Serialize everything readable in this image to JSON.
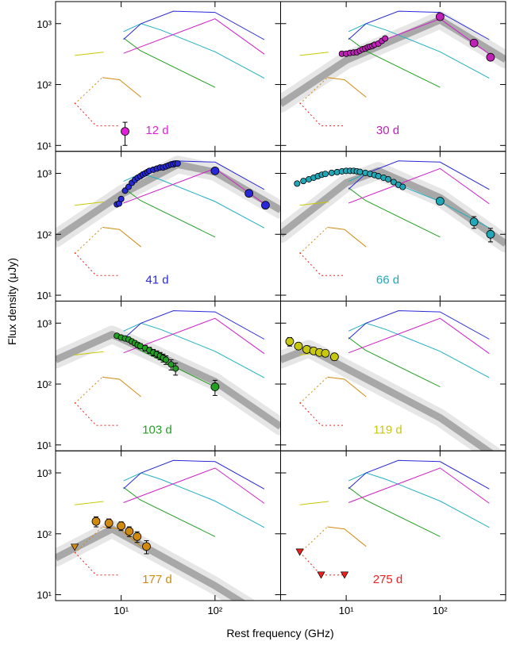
{
  "chart_data": {
    "type": "line",
    "log_x": true,
    "log_y": true,
    "xlabel": "Rest frequency (GHz)",
    "ylabel": "Flux density (μJy)",
    "xlim": [
      2,
      500
    ],
    "ylim": [
      8,
      2300
    ],
    "xticks": [
      {
        "value": 10,
        "label": "10¹"
      },
      {
        "value": 100,
        "label": "10²"
      }
    ],
    "yticks": [
      {
        "value": 10,
        "label": "10¹"
      },
      {
        "value": 100,
        "label": "10²"
      },
      {
        "value": 1000,
        "label": "10³"
      }
    ],
    "reference_series": [
      {
        "color": "#c8c800",
        "dashed": false,
        "x": [
          3.2,
          6.5
        ],
        "values": [
          300,
          340
        ]
      },
      {
        "color": "#d08a10",
        "dashed": true,
        "x": [
          3.2,
          6.3
        ],
        "values": [
          48,
          130
        ]
      },
      {
        "color": "#d08a10",
        "dashed": false,
        "x": [
          6.3,
          9.6,
          16.3
        ],
        "values": [
          130,
          120,
          62
        ]
      },
      {
        "color": "#ee2020",
        "dashed": true,
        "x": [
          3.2,
          5.4,
          9.6
        ],
        "values": [
          50,
          21,
          21
        ]
      },
      {
        "color": "#22a022",
        "dashed": false,
        "x": [
          10.6,
          16,
          100
        ],
        "values": [
          580,
          360,
          90
        ]
      },
      {
        "color": "#20b0c0",
        "dashed": false,
        "x": [
          10.6,
          16.3,
          26.5,
          100,
          335
        ],
        "values": [
          740,
          1000,
          785,
          345,
          127
        ]
      },
      {
        "color": "#2828d8",
        "dashed": false,
        "x": [
          10.6,
          16.3,
          36,
          100,
          335
        ],
        "values": [
          550,
          1000,
          1600,
          1530,
          545
        ]
      },
      {
        "color": "#d020c8",
        "dashed": false,
        "x": [
          10.6,
          100,
          335
        ],
        "values": [
          325,
          1200,
          316
        ]
      }
    ],
    "panels": [
      {
        "label": "12 d",
        "color": "#e020d8",
        "points": {
          "x": [
            11
          ],
          "values": [
            17
          ],
          "errors": [
            7
          ]
        }
      },
      {
        "label": "30 d",
        "color": "#c020b8",
        "model": {
          "x": [
            2,
            10,
            100,
            500
          ],
          "values": [
            48,
            250,
            1150,
            256
          ]
        },
        "points": {
          "x": [
            9,
            10,
            11,
            12,
            13,
            14,
            15,
            16,
            17,
            18,
            19,
            20,
            22,
            24,
            26,
            100,
            230,
            345
          ],
          "values": [
            320,
            320,
            330,
            335,
            340,
            360,
            380,
            390,
            410,
            420,
            430,
            450,
            470,
            520,
            570,
            1300,
            480,
            280
          ],
          "errors": [
            20,
            20,
            20,
            20,
            20,
            20,
            20,
            20,
            25,
            25,
            25,
            25,
            25,
            30,
            30,
            100,
            40,
            30
          ]
        }
      },
      {
        "label": "41 d",
        "color": "#2828d8",
        "model": {
          "x": [
            2,
            10,
            40,
            100,
            500
          ],
          "values": [
            85,
            450,
            1400,
            1050,
            250
          ]
        },
        "points": {
          "x": [
            9,
            9.5,
            10,
            11,
            12,
            13,
            14,
            15,
            16,
            17,
            18,
            19,
            20,
            22,
            24,
            26,
            28,
            30,
            32,
            34,
            36,
            38,
            40,
            100,
            230,
            345
          ],
          "values": [
            310,
            320,
            380,
            520,
            600,
            700,
            780,
            850,
            900,
            960,
            1000,
            1050,
            1100,
            1150,
            1200,
            1250,
            1250,
            1300,
            1350,
            1400,
            1400,
            1450,
            1450,
            1100,
            470,
            300
          ],
          "errors": [
            20,
            20,
            25,
            30,
            35,
            40,
            40,
            45,
            45,
            50,
            50,
            55,
            55,
            60,
            60,
            60,
            60,
            65,
            65,
            70,
            70,
            70,
            70,
            90,
            50,
            35
          ]
        }
      },
      {
        "label": "66 d",
        "color": "#20a8b8",
        "model": {
          "x": [
            2,
            10,
            22,
            100,
            500
          ],
          "values": [
            100,
            700,
            1100,
            400,
            70
          ]
        },
        "points": {
          "x": [
            3,
            3.5,
            4,
            4.5,
            5,
            5.5,
            6,
            7,
            8,
            9,
            10,
            11,
            12,
            13,
            14,
            16,
            18,
            20,
            22,
            25,
            28,
            32,
            36,
            40,
            100,
            230,
            345
          ],
          "values": [
            680,
            750,
            800,
            850,
            900,
            950,
            980,
            1020,
            1050,
            1080,
            1100,
            1100,
            1100,
            1080,
            1060,
            1020,
            980,
            940,
            900,
            850,
            800,
            720,
            650,
            600,
            350,
            160,
            100
          ],
          "errors": [
            40,
            40,
            40,
            45,
            45,
            50,
            50,
            50,
            50,
            55,
            55,
            55,
            55,
            55,
            55,
            50,
            50,
            50,
            45,
            45,
            40,
            40,
            35,
            35,
            40,
            35,
            25
          ]
        }
      },
      {
        "label": "103 d",
        "color": "#22a022",
        "model": {
          "x": [
            2,
            8,
            100,
            500
          ],
          "values": [
            250,
            650,
            110,
            20
          ]
        },
        "points": {
          "x": [
            9,
            10,
            11,
            12,
            13,
            14,
            15,
            16,
            18,
            20,
            22,
            24,
            26,
            28,
            30,
            34,
            38,
            100
          ],
          "values": [
            620,
            580,
            560,
            540,
            500,
            470,
            440,
            420,
            390,
            360,
            330,
            310,
            290,
            270,
            250,
            210,
            180,
            90
          ],
          "errors": [
            40,
            40,
            40,
            40,
            40,
            40,
            40,
            40,
            40,
            40,
            40,
            40,
            40,
            40,
            40,
            40,
            40,
            25
          ]
        }
      },
      {
        "label": "119 d",
        "color": "#c8c810",
        "model": {
          "x": [
            2,
            4,
            100,
            500
          ],
          "values": [
            250,
            380,
            28,
            5
          ]
        },
        "points": {
          "x": [
            2.5,
            3.1,
            3.8,
            4.5,
            5.2,
            6,
            7.5
          ],
          "values": [
            500,
            420,
            370,
            350,
            330,
            320,
            280
          ],
          "errors": [
            80,
            50,
            40,
            40,
            35,
            35,
            35
          ]
        }
      },
      {
        "label": "177 d",
        "color": "#d08a10",
        "model": {
          "x": [
            2,
            8,
            100,
            500
          ],
          "values": [
            40,
            120,
            14,
            3
          ]
        },
        "points": {
          "x": [
            3.2,
            5.4,
            7.4,
            10,
            12.2,
            14.8,
            18.6
          ],
          "values": [
            60,
            160,
            150,
            135,
            110,
            90,
            62
          ],
          "errors": [
            null,
            30,
            25,
            22,
            20,
            18,
            15
          ],
          "upper_limit": [
            true,
            false,
            false,
            false,
            false,
            false,
            false
          ]
        }
      },
      {
        "label": "275 d",
        "color": "#ee2020",
        "points": {
          "x": [
            3.2,
            5.4,
            9.6
          ],
          "values": [
            50,
            21,
            21
          ],
          "upper_limit": [
            true,
            true,
            true
          ]
        }
      }
    ]
  }
}
